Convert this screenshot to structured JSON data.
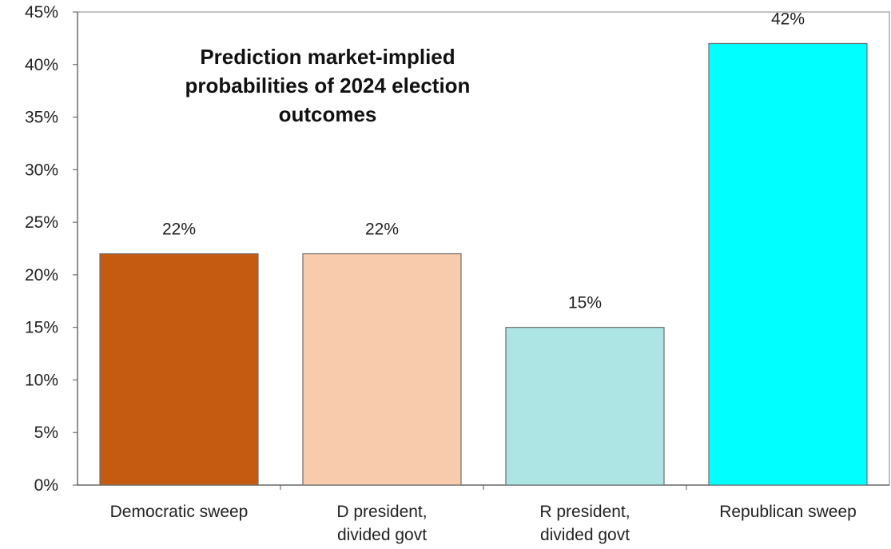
{
  "chart_data": {
    "type": "bar",
    "title": "Prediction market-implied probabilities of 2024 election outcomes",
    "title_lines": [
      "Prediction market-implied",
      "probabilities of 2024 election",
      "outcomes"
    ],
    "categories": [
      "Democratic sweep",
      "D president, divided govt",
      "R president, divided govt",
      "Republican sweep"
    ],
    "category_lines": [
      [
        "Democratic sweep"
      ],
      [
        "D president,",
        "divided govt"
      ],
      [
        "R president,",
        "divided govt"
      ],
      [
        "Republican sweep"
      ]
    ],
    "values": [
      22,
      22,
      15,
      42
    ],
    "data_labels": [
      "22%",
      "22%",
      "15%",
      "42%"
    ],
    "colors": [
      "#C55A11",
      "#F8CBAD",
      "#ADE4E4",
      "#00FFFF"
    ],
    "ylim": [
      0,
      45
    ],
    "yticks": [
      0,
      5,
      10,
      15,
      20,
      25,
      30,
      35,
      40,
      45
    ],
    "ytick_labels": [
      "0%",
      "5%",
      "10%",
      "15%",
      "20%",
      "25%",
      "30%",
      "35%",
      "40%",
      "45%"
    ],
    "grid": false,
    "xlabel": "",
    "ylabel": ""
  }
}
